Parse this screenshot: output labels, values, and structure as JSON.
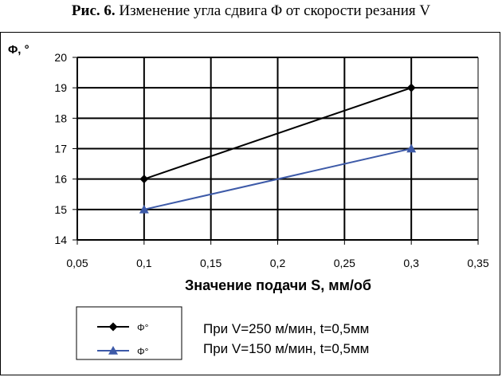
{
  "caption": {
    "prefix": "Рис. 6.",
    "text": "Изменение угла сдвига Φ от скорости резания V"
  },
  "notes": {
    "line1": "При V=250 м/мин, t=0,5мм",
    "line2": "При V=150 м/мин, t=0,5мм"
  },
  "chart_data": {
    "type": "line",
    "title": "",
    "ylabel": "Φ, °",
    "xlabel": "Значение подачи S, мм/об",
    "xlim": [
      0.05,
      0.35
    ],
    "ylim": [
      14,
      20
    ],
    "x_ticks": [
      "0,05",
      "0,1",
      "0,15",
      "0,2",
      "0,25",
      "0,3",
      "0,35"
    ],
    "x_tick_values": [
      0.05,
      0.1,
      0.15,
      0.2,
      0.25,
      0.3,
      0.35
    ],
    "y_ticks": [
      "14",
      "15",
      "16",
      "17",
      "18",
      "19",
      "20"
    ],
    "y_tick_values": [
      14,
      15,
      16,
      17,
      18,
      19,
      20
    ],
    "grid": "horizontal",
    "legend_position": "bottom-left",
    "series": [
      {
        "name": "Φ°",
        "x": [
          0.1,
          0.3
        ],
        "y": [
          16,
          19
        ],
        "color": "#000000",
        "marker": "diamond"
      },
      {
        "name": "Φ°",
        "x": [
          0.1,
          0.3
        ],
        "y": [
          15,
          17
        ],
        "color": "#3d5aa8",
        "marker": "triangle"
      }
    ]
  }
}
